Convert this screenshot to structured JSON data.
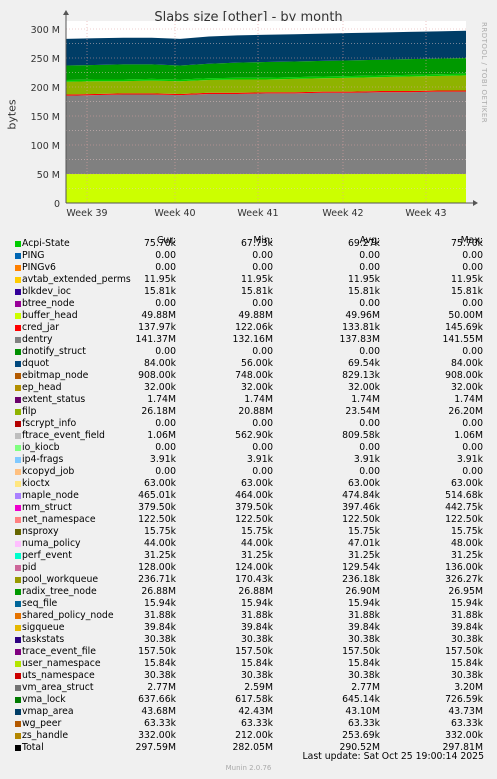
{
  "title": "Slabs size [other] - by month",
  "sidenote": "RRDTOOL / TOBI OETIKER",
  "footer": {
    "last_update": "Last update: Sat Oct 25 19:00:14 2025",
    "munin": "Munin 2.0.76"
  },
  "legend_headers": {
    "cur": "Cur:",
    "min": "Min:",
    "avg": "Avg:",
    "max": "Max:"
  },
  "chart_data": {
    "type": "area",
    "title": "Slabs size [other] - by month",
    "ylabel": "bytes",
    "yticks": [
      "0",
      "50 M",
      "100 M",
      "150 M",
      "200 M",
      "250 M",
      "300 M"
    ],
    "ylim": [
      0,
      300
    ],
    "xticks": [
      "Week 39",
      "Week 40",
      "Week 41",
      "Week 42",
      "Week 43"
    ],
    "grid": true,
    "stack_levels_M": {
      "buffer_head": 49.9,
      "dentry_top": [
        185,
        186,
        187,
        187,
        186,
        188,
        188,
        189,
        189,
        190,
        190,
        191,
        191,
        192,
        192
      ],
      "filp_top": [
        209,
        210,
        210,
        211,
        210,
        212,
        213,
        213,
        214,
        215,
        216,
        217,
        218,
        219,
        220
      ],
      "radix_top": [
        237,
        238,
        239,
        239,
        237,
        240,
        242,
        243,
        244,
        245,
        246,
        247,
        248,
        249,
        250
      ],
      "total": [
        283,
        284,
        285,
        285,
        283,
        287,
        289,
        290,
        291,
        292,
        293,
        294,
        295,
        296,
        297
      ]
    },
    "series": [
      {
        "name": "Acpi-State",
        "color": "#00cc00",
        "cur": "75.70k",
        "min": "67.73k",
        "avg": "69.27k",
        "max": "75.70k"
      },
      {
        "name": "PING",
        "color": "#0066b3",
        "cur": "0.00",
        "min": "0.00",
        "avg": "0.00",
        "max": "0.00"
      },
      {
        "name": "PINGv6",
        "color": "#ff8000",
        "cur": "0.00",
        "min": "0.00",
        "avg": "0.00",
        "max": "0.00"
      },
      {
        "name": "avtab_extended_perms",
        "color": "#ffcc00",
        "cur": "11.95k",
        "min": "11.95k",
        "avg": "11.95k",
        "max": "11.95k"
      },
      {
        "name": "blkdev_ioc",
        "color": "#330099",
        "cur": "15.81k",
        "min": "15.81k",
        "avg": "15.81k",
        "max": "15.81k"
      },
      {
        "name": "btree_node",
        "color": "#990099",
        "cur": "0.00",
        "min": "0.00",
        "avg": "0.00",
        "max": "0.00"
      },
      {
        "name": "buffer_head",
        "color": "#ccff00",
        "cur": "49.88M",
        "min": "49.88M",
        "avg": "49.96M",
        "max": "50.00M"
      },
      {
        "name": "cred_jar",
        "color": "#ff0000",
        "cur": "137.97k",
        "min": "122.06k",
        "avg": "133.81k",
        "max": "145.69k"
      },
      {
        "name": "dentry",
        "color": "#808080",
        "cur": "141.37M",
        "min": "132.16M",
        "avg": "137.83M",
        "max": "141.55M"
      },
      {
        "name": "dnotify_struct",
        "color": "#008f00",
        "cur": "0.00",
        "min": "0.00",
        "avg": "0.00",
        "max": "0.00"
      },
      {
        "name": "dquot",
        "color": "#00487d",
        "cur": "84.00k",
        "min": "56.00k",
        "avg": "69.54k",
        "max": "84.00k"
      },
      {
        "name": "ebitmap_node",
        "color": "#b35a00",
        "cur": "908.00k",
        "min": "748.00k",
        "avg": "829.13k",
        "max": "908.00k"
      },
      {
        "name": "ep_head",
        "color": "#b38f00",
        "cur": "32.00k",
        "min": "32.00k",
        "avg": "32.00k",
        "max": "32.00k"
      },
      {
        "name": "extent_status",
        "color": "#6b006b",
        "cur": "1.74M",
        "min": "1.74M",
        "avg": "1.74M",
        "max": "1.74M"
      },
      {
        "name": "filp",
        "color": "#8fb300",
        "cur": "26.18M",
        "min": "20.88M",
        "avg": "23.54M",
        "max": "26.20M"
      },
      {
        "name": "fscrypt_info",
        "color": "#b30000",
        "cur": "0.00",
        "min": "0.00",
        "avg": "0.00",
        "max": "0.00"
      },
      {
        "name": "ftrace_event_field",
        "color": "#bebebe",
        "cur": "1.06M",
        "min": "562.90k",
        "avg": "809.58k",
        "max": "1.06M"
      },
      {
        "name": "io_kiocb",
        "color": "#80ff80",
        "cur": "0.00",
        "min": "0.00",
        "avg": "0.00",
        "max": "0.00"
      },
      {
        "name": "ip4-frags",
        "color": "#80c9ff",
        "cur": "3.91k",
        "min": "3.91k",
        "avg": "3.91k",
        "max": "3.91k"
      },
      {
        "name": "kcopyd_job",
        "color": "#ffc080",
        "cur": "0.00",
        "min": "0.00",
        "avg": "0.00",
        "max": "0.00"
      },
      {
        "name": "kioctx",
        "color": "#ffe680",
        "cur": "63.00k",
        "min": "63.00k",
        "avg": "63.00k",
        "max": "63.00k"
      },
      {
        "name": "maple_node",
        "color": "#aa80ff",
        "cur": "465.01k",
        "min": "464.00k",
        "avg": "474.84k",
        "max": "514.68k"
      },
      {
        "name": "mm_struct",
        "color": "#ee00cc",
        "cur": "379.50k",
        "min": "379.50k",
        "avg": "397.46k",
        "max": "442.75k"
      },
      {
        "name": "net_namespace",
        "color": "#ff8080",
        "cur": "122.50k",
        "min": "122.50k",
        "avg": "122.50k",
        "max": "122.50k"
      },
      {
        "name": "nsproxy",
        "color": "#666600",
        "cur": "15.75k",
        "min": "15.75k",
        "avg": "15.75k",
        "max": "15.75k"
      },
      {
        "name": "numa_policy",
        "color": "#ffbfff",
        "cur": "44.00k",
        "min": "44.00k",
        "avg": "47.01k",
        "max": "48.00k"
      },
      {
        "name": "perf_event",
        "color": "#00ffcc",
        "cur": "31.25k",
        "min": "31.25k",
        "avg": "31.25k",
        "max": "31.25k"
      },
      {
        "name": "pid",
        "color": "#cc6699",
        "cur": "128.00k",
        "min": "124.00k",
        "avg": "129.54k",
        "max": "136.00k"
      },
      {
        "name": "pool_workqueue",
        "color": "#999900",
        "cur": "236.71k",
        "min": "170.43k",
        "avg": "236.18k",
        "max": "326.27k"
      },
      {
        "name": "radix_tree_node",
        "color": "#009900",
        "cur": "26.88M",
        "min": "26.88M",
        "avg": "26.90M",
        "max": "26.95M"
      },
      {
        "name": "seq_file",
        "color": "#006699",
        "cur": "15.94k",
        "min": "15.94k",
        "avg": "15.94k",
        "max": "15.94k"
      },
      {
        "name": "shared_policy_node",
        "color": "#e67300",
        "cur": "31.88k",
        "min": "31.88k",
        "avg": "31.88k",
        "max": "31.88k"
      },
      {
        "name": "sigqueue",
        "color": "#e6b800",
        "cur": "39.84k",
        "min": "39.84k",
        "avg": "39.84k",
        "max": "39.84k"
      },
      {
        "name": "taskstats",
        "color": "#2d0080",
        "cur": "30.38k",
        "min": "30.38k",
        "avg": "30.38k",
        "max": "30.38k"
      },
      {
        "name": "trace_event_file",
        "color": "#800080",
        "cur": "157.50k",
        "min": "157.50k",
        "avg": "157.50k",
        "max": "157.50k"
      },
      {
        "name": "user_namespace",
        "color": "#b3e600",
        "cur": "15.84k",
        "min": "15.84k",
        "avg": "15.84k",
        "max": "15.84k"
      },
      {
        "name": "uts_namespace",
        "color": "#cc0000",
        "cur": "30.38k",
        "min": "30.38k",
        "avg": "30.38k",
        "max": "30.38k"
      },
      {
        "name": "vm_area_struct",
        "color": "#737373",
        "cur": "2.77M",
        "min": "2.59M",
        "avg": "2.77M",
        "max": "3.20M"
      },
      {
        "name": "vma_lock",
        "color": "#007a00",
        "cur": "637.66k",
        "min": "617.58k",
        "avg": "645.14k",
        "max": "726.59k"
      },
      {
        "name": "vmap_area",
        "color": "#003d66",
        "cur": "43.68M",
        "min": "42.43M",
        "avg": "43.10M",
        "max": "43.73M"
      },
      {
        "name": "wg_peer",
        "color": "#b35900",
        "cur": "63.33k",
        "min": "63.33k",
        "avg": "63.33k",
        "max": "63.33k"
      },
      {
        "name": "zs_handle",
        "color": "#b38600",
        "cur": "332.00k",
        "min": "212.00k",
        "avg": "253.69k",
        "max": "332.00k"
      },
      {
        "name": "Total",
        "color": "#000000",
        "cur": "297.59M",
        "min": "282.05M",
        "avg": "290.52M",
        "max": "297.81M"
      }
    ]
  }
}
